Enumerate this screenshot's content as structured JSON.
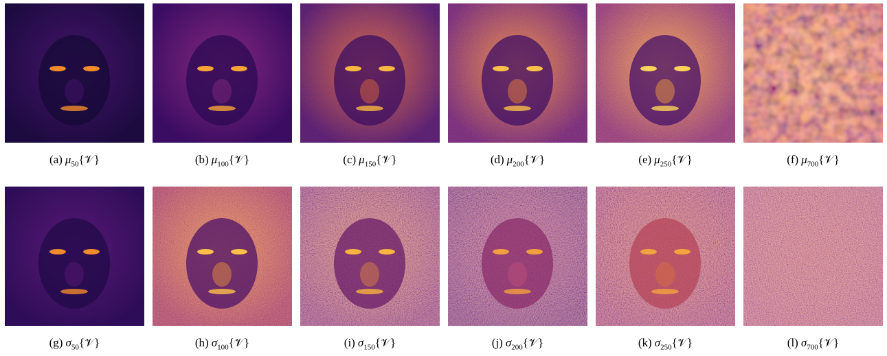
{
  "figure": {
    "panels": [
      {
        "tag": "(a)",
        "symbol": "μ",
        "sub": "50",
        "arg": "{𝒱}"
      },
      {
        "tag": "(b)",
        "symbol": "μ",
        "sub": "100",
        "arg": "{𝒱}"
      },
      {
        "tag": "(c)",
        "symbol": "μ",
        "sub": "150",
        "arg": "{𝒱}"
      },
      {
        "tag": "(d)",
        "symbol": "μ",
        "sub": "200",
        "arg": "{𝒱}"
      },
      {
        "tag": "(e)",
        "symbol": "μ",
        "sub": "250",
        "arg": "{𝒱}"
      },
      {
        "tag": "(f)",
        "symbol": "μ",
        "sub": "700",
        "arg": "{𝒱}"
      },
      {
        "tag": "(g)",
        "symbol": "σ",
        "sub": "50",
        "arg": "{𝒱}"
      },
      {
        "tag": "(h)",
        "symbol": "σ",
        "sub": "100",
        "arg": "{𝒱}"
      },
      {
        "tag": "(i)",
        "symbol": "σ",
        "sub": "150",
        "arg": "{𝒱}"
      },
      {
        "tag": "(j)",
        "symbol": "σ",
        "sub": "200",
        "arg": "{𝒱}"
      },
      {
        "tag": "(k)",
        "symbol": "σ",
        "sub": "250",
        "arg": "{𝒱}"
      },
      {
        "tag": "(l)",
        "symbol": "σ",
        "sub": "700",
        "arg": "{𝒱}"
      }
    ]
  }
}
